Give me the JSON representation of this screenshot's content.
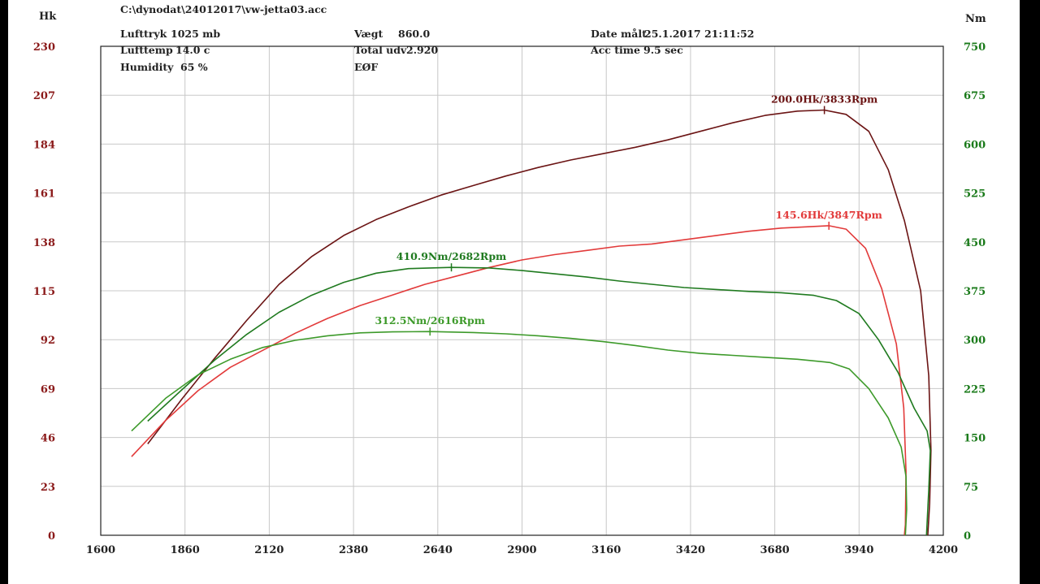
{
  "header": {
    "file_path": "C:\\dynodat\\24012017\\vw-jetta03.acc",
    "col1": [
      {
        "label": "Lufttryk",
        "value": "1025 mb"
      },
      {
        "label": "Lufttemp",
        "value": "14.0 c"
      },
      {
        "label": "Humidity",
        "value": "65 %"
      }
    ],
    "col2": [
      {
        "label": "Vægt",
        "value": "860.0"
      },
      {
        "label": "Total udv",
        "value": "2.920"
      },
      {
        "label": "EØF",
        "value": ""
      }
    ],
    "col3": [
      {
        "label": "Date målt",
        "value": "25.1.2017 21:11:52"
      },
      {
        "label": "Acc time",
        "value": "9.5 sec"
      }
    ]
  },
  "colors": {
    "hk_axis": "#8b1a1a",
    "nm_axis": "#1a7a1a",
    "curve_hk_1": "#6b1414",
    "curve_hk_2": "#e23a3a",
    "curve_nm_1": "#1f7a1f",
    "curve_nm_2": "#3d9a2a",
    "grid": "#c8c8c8"
  },
  "chart_data": {
    "type": "line",
    "xlabel": "",
    "x_ticks": [
      "1600",
      "1860",
      "2120",
      "2380",
      "2640",
      "2900",
      "3160",
      "3420",
      "3680",
      "3940",
      "4200"
    ],
    "xlim": [
      1600,
      4200
    ],
    "left_axis": {
      "unit": "Hk",
      "ticks": [
        "0",
        "23",
        "46",
        "69",
        "92",
        "115",
        "138",
        "161",
        "184",
        "207",
        "230"
      ],
      "ylim": [
        0,
        230
      ]
    },
    "right_axis": {
      "unit": "Nm",
      "ticks": [
        "0",
        "75",
        "150",
        "225",
        "300",
        "375",
        "450",
        "525",
        "600",
        "675",
        "750"
      ],
      "ylim": [
        0,
        750
      ]
    },
    "series": [
      {
        "axis": "left",
        "color": "#6b1414",
        "peak_label": "200.0Hk/3833Rpm",
        "peak": [
          3833,
          200.0
        ],
        "points": [
          [
            1745,
            43
          ],
          [
            1850,
            64
          ],
          [
            1950,
            83
          ],
          [
            2050,
            101
          ],
          [
            2150,
            118
          ],
          [
            2250,
            131
          ],
          [
            2350,
            141
          ],
          [
            2450,
            148.5
          ],
          [
            2550,
            154.5
          ],
          [
            2650,
            160
          ],
          [
            2750,
            164.5
          ],
          [
            2850,
            169
          ],
          [
            2950,
            173
          ],
          [
            3050,
            176.5
          ],
          [
            3150,
            179.5
          ],
          [
            3250,
            182.5
          ],
          [
            3350,
            186
          ],
          [
            3450,
            190
          ],
          [
            3550,
            194
          ],
          [
            3650,
            197.5
          ],
          [
            3750,
            199.5
          ],
          [
            3833,
            200
          ],
          [
            3900,
            198
          ],
          [
            3970,
            190
          ],
          [
            4030,
            172
          ],
          [
            4080,
            148
          ],
          [
            4130,
            115
          ],
          [
            4155,
            75
          ],
          [
            4162,
            40
          ],
          [
            4158,
            15
          ],
          [
            4152,
            0
          ]
        ]
      },
      {
        "axis": "left",
        "color": "#e23a3a",
        "peak_label": "145.6Hk/3847Rpm",
        "peak": [
          3847,
          145.6
        ],
        "points": [
          [
            1695,
            37
          ],
          [
            1800,
            54
          ],
          [
            1900,
            68
          ],
          [
            2000,
            79
          ],
          [
            2100,
            87
          ],
          [
            2200,
            95
          ],
          [
            2300,
            102
          ],
          [
            2400,
            108
          ],
          [
            2500,
            113
          ],
          [
            2600,
            118
          ],
          [
            2700,
            122
          ],
          [
            2800,
            126
          ],
          [
            2900,
            129.5
          ],
          [
            3000,
            132
          ],
          [
            3100,
            134
          ],
          [
            3200,
            136
          ],
          [
            3300,
            137
          ],
          [
            3400,
            139
          ],
          [
            3500,
            141
          ],
          [
            3600,
            143
          ],
          [
            3700,
            144.5
          ],
          [
            3847,
            145.6
          ],
          [
            3900,
            144
          ],
          [
            3960,
            135
          ],
          [
            4010,
            116
          ],
          [
            4055,
            90
          ],
          [
            4078,
            60
          ],
          [
            4085,
            30
          ],
          [
            4083,
            5
          ],
          [
            4080,
            0
          ]
        ]
      },
      {
        "axis": "right",
        "color": "#1f7a1f",
        "peak_label": "410.9Nm/2682Rpm",
        "peak": [
          2682,
          410.9
        ],
        "points": [
          [
            1745,
            175
          ],
          [
            1850,
            223
          ],
          [
            1950,
            268
          ],
          [
            2050,
            308
          ],
          [
            2150,
            342
          ],
          [
            2250,
            368
          ],
          [
            2350,
            388
          ],
          [
            2450,
            402
          ],
          [
            2550,
            409
          ],
          [
            2682,
            410.9
          ],
          [
            2800,
            410
          ],
          [
            2900,
            406
          ],
          [
            3000,
            401
          ],
          [
            3100,
            396
          ],
          [
            3200,
            390
          ],
          [
            3300,
            385
          ],
          [
            3400,
            380
          ],
          [
            3500,
            377
          ],
          [
            3600,
            374
          ],
          [
            3700,
            372
          ],
          [
            3800,
            368
          ],
          [
            3870,
            360
          ],
          [
            3940,
            340
          ],
          [
            4000,
            300
          ],
          [
            4060,
            250
          ],
          [
            4110,
            195
          ],
          [
            4150,
            160
          ],
          [
            4160,
            130
          ],
          [
            4155,
            70
          ],
          [
            4150,
            20
          ],
          [
            4148,
            0
          ]
        ]
      },
      {
        "axis": "right",
        "color": "#3d9a2a",
        "peak_label": "312.5Nm/2616Rpm",
        "peak": [
          2616,
          312.5
        ],
        "points": [
          [
            1695,
            160
          ],
          [
            1800,
            210
          ],
          [
            1900,
            246
          ],
          [
            2000,
            270
          ],
          [
            2100,
            288
          ],
          [
            2200,
            299
          ],
          [
            2300,
            306
          ],
          [
            2400,
            310.5
          ],
          [
            2500,
            312
          ],
          [
            2616,
            312.5
          ],
          [
            2750,
            311
          ],
          [
            2850,
            309
          ],
          [
            2950,
            306
          ],
          [
            3050,
            302
          ],
          [
            3150,
            297
          ],
          [
            3250,
            291
          ],
          [
            3350,
            284
          ],
          [
            3450,
            279
          ],
          [
            3550,
            276
          ],
          [
            3650,
            273
          ],
          [
            3750,
            270
          ],
          [
            3850,
            265
          ],
          [
            3910,
            255
          ],
          [
            3970,
            225
          ],
          [
            4030,
            180
          ],
          [
            4070,
            135
          ],
          [
            4085,
            90
          ],
          [
            4087,
            40
          ],
          [
            4083,
            0
          ]
        ]
      }
    ]
  }
}
